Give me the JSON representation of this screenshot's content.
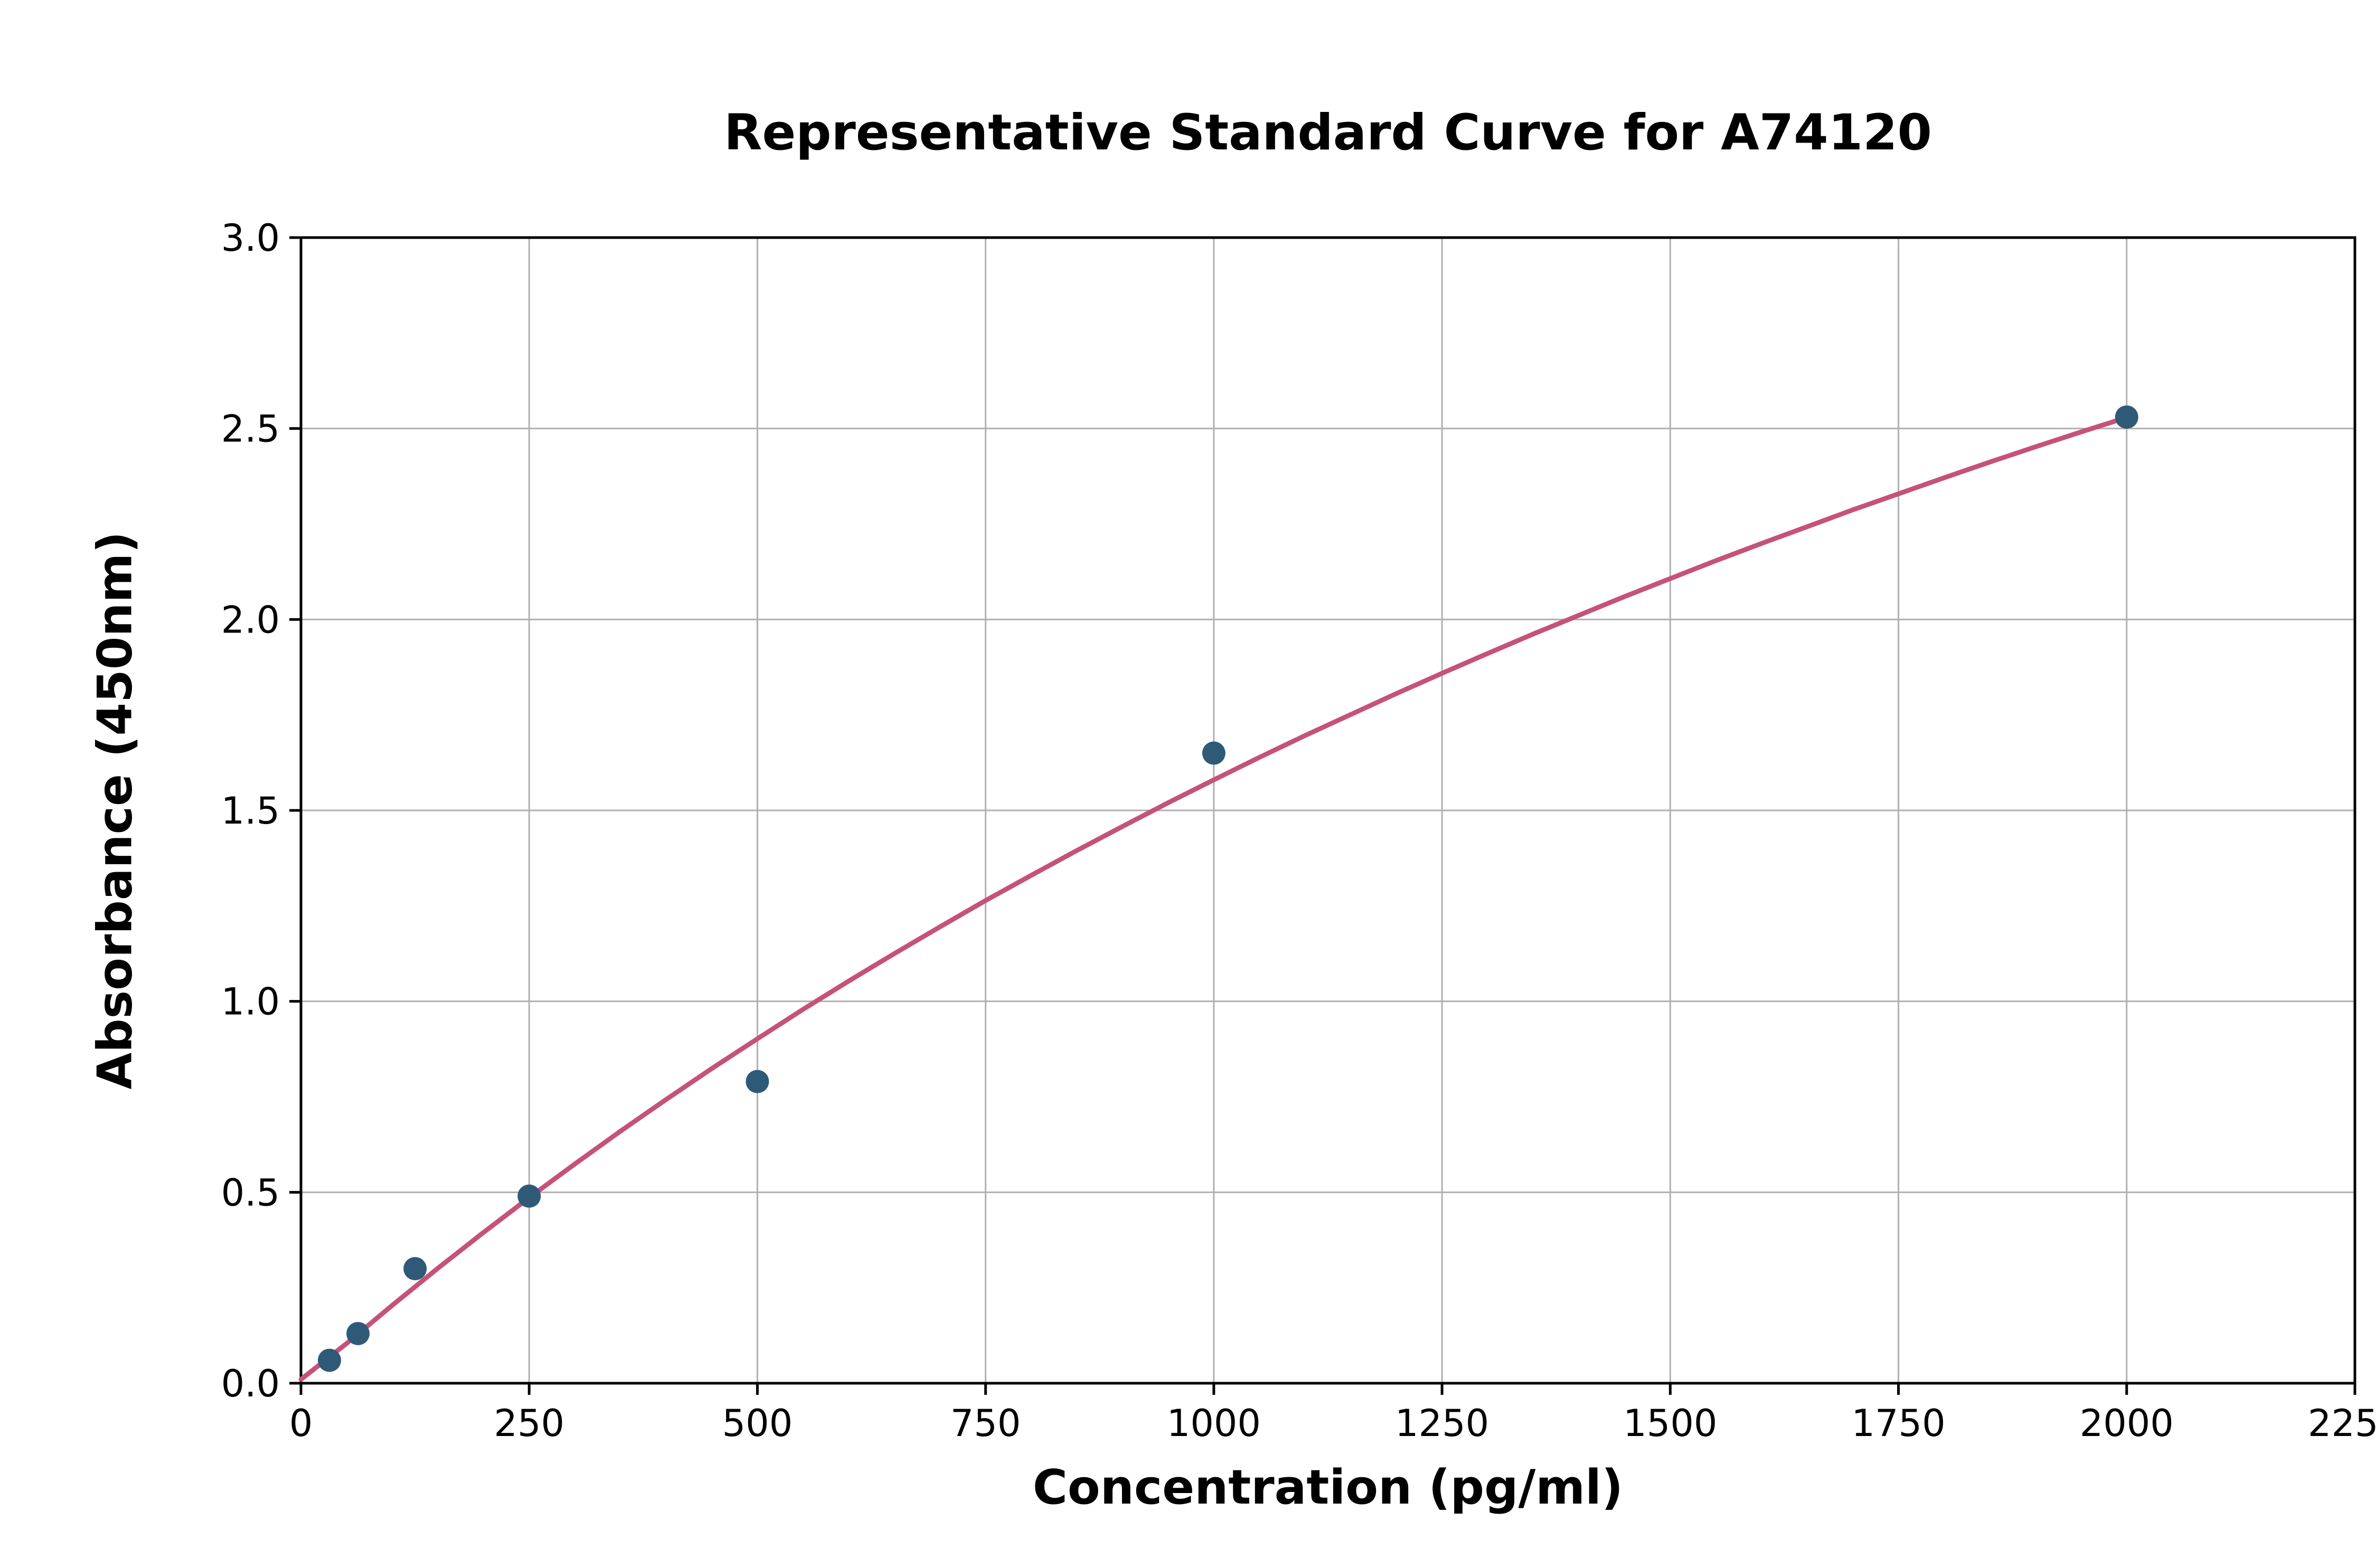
{
  "chart_data": {
    "type": "scatter",
    "title": "Representative Standard Curve for A74120",
    "xlabel": "Concentration (pg/ml)",
    "ylabel": "Absorbance (450nm)",
    "xlim": [
      0,
      2250
    ],
    "ylim": [
      0,
      3.0
    ],
    "grid": true,
    "legend": "none",
    "xticks": [
      0,
      250,
      500,
      750,
      1000,
      1250,
      1500,
      1750,
      2000,
      2250
    ],
    "xtick_labels": [
      "0",
      "250",
      "500",
      "750",
      "1000",
      "1250",
      "1500",
      "1750",
      "2000",
      "2250"
    ],
    "yticks": [
      0,
      0.5,
      1.0,
      1.5,
      2.0,
      2.5,
      3.0
    ],
    "ytick_labels": [
      "0.0",
      "0.5",
      "1.0",
      "1.5",
      "2.0",
      "2.5",
      "3.0"
    ],
    "points": {
      "x": [
        31.2,
        62.5,
        125,
        250,
        500,
        1000,
        2000
      ],
      "y": [
        0.06,
        0.13,
        0.3,
        0.49,
        0.79,
        1.65,
        2.53
      ]
    },
    "fit_curve": {
      "x": [
        0,
        50,
        100,
        150,
        200,
        250,
        300,
        350,
        400,
        450,
        500,
        550,
        600,
        650,
        700,
        750,
        800,
        850,
        900,
        950,
        1000,
        1050,
        1100,
        1150,
        1200,
        1250,
        1300,
        1350,
        1400,
        1450,
        1500,
        1550,
        1600,
        1650,
        1700,
        1750,
        1800,
        1850,
        1900,
        1950,
        2000
      ],
      "y": [
        0.01,
        0.104,
        0.204,
        0.301,
        0.395,
        0.486,
        0.574,
        0.66,
        0.743,
        0.824,
        0.902,
        0.979,
        1.053,
        1.125,
        1.195,
        1.264,
        1.33,
        1.395,
        1.458,
        1.52,
        1.58,
        1.639,
        1.696,
        1.751,
        1.806,
        1.859,
        1.911,
        1.962,
        2.011,
        2.06,
        2.107,
        2.154,
        2.199,
        2.243,
        2.287,
        2.329,
        2.371,
        2.412,
        2.452,
        2.491,
        2.529
      ]
    },
    "colors": {
      "point": "#2e5a78",
      "curve": "#c5527a",
      "grid": "#b0b0b0",
      "axis": "#000000",
      "background": "#ffffff"
    }
  }
}
